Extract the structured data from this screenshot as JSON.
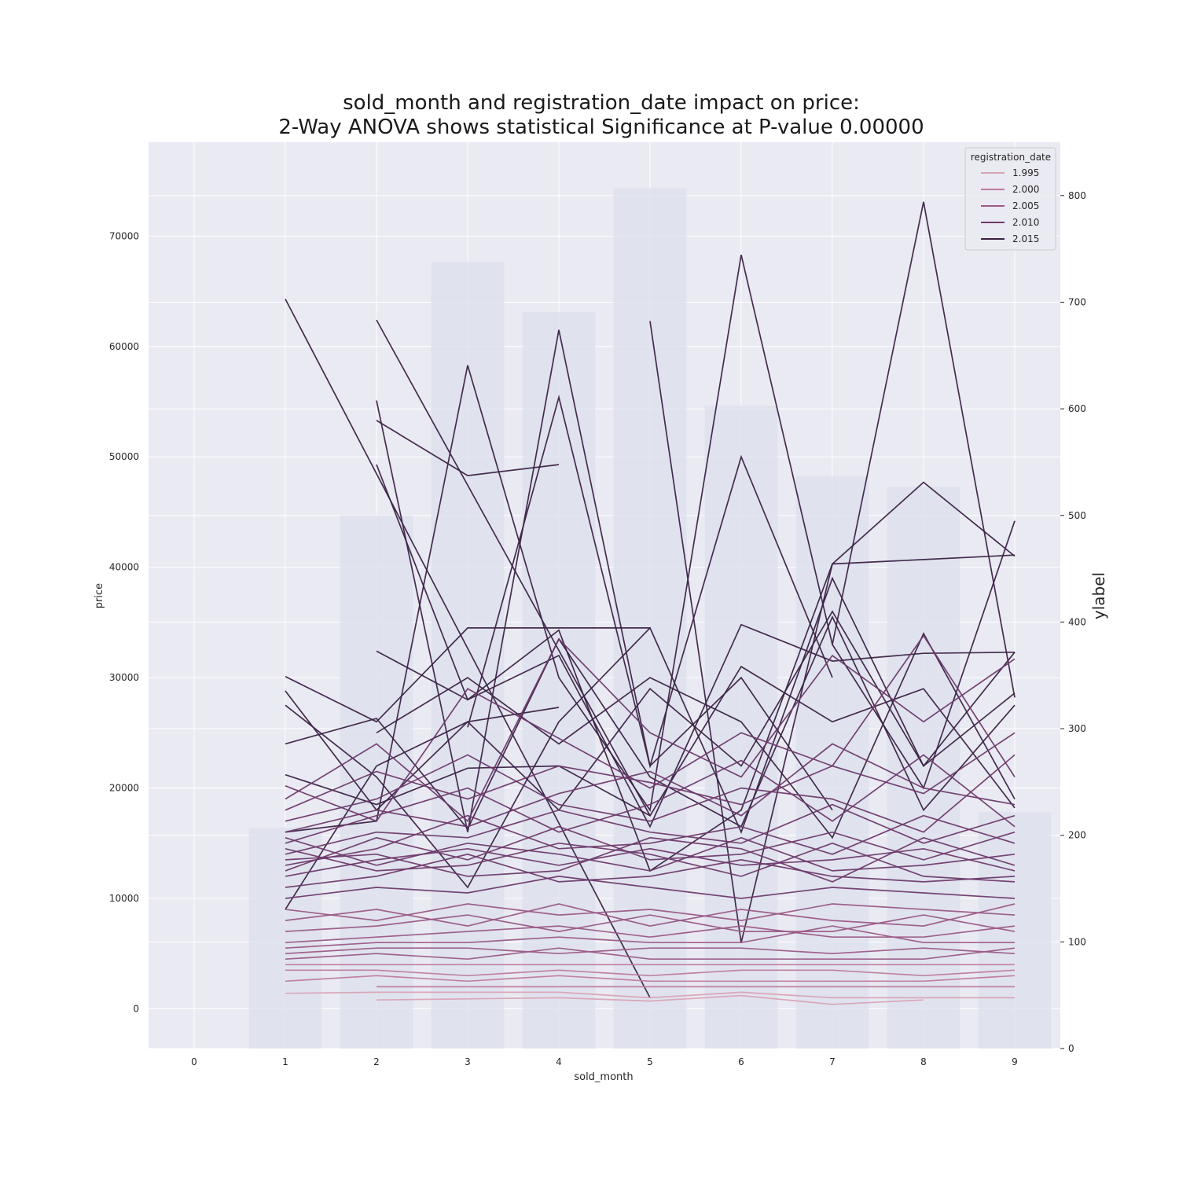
{
  "chart_data": {
    "type": "line",
    "title": "sold_month and registration_date impact on price:",
    "subtitle": "2-Way ANOVA shows statistical Significance at P-value 0.00000",
    "xlabel": "sold_month",
    "ylabel": "price",
    "ylabel_right": "ylabel",
    "x_ticks": [
      0,
      1,
      2,
      3,
      4,
      5,
      6,
      7,
      8,
      9
    ],
    "y_ticks": [
      0,
      10000,
      20000,
      30000,
      40000,
      50000,
      60000,
      70000
    ],
    "y_right_ticks": [
      0,
      100,
      200,
      300,
      400,
      500,
      600,
      700,
      800
    ],
    "xlim": [
      -0.5,
      9.5
    ],
    "ylim": [
      -3600,
      78500
    ],
    "ylim_right": [
      0,
      850
    ],
    "grid": true,
    "legend": {
      "title": "registration_date",
      "placement": "top-right",
      "entries": [
        {
          "label": "1.995",
          "color": "#d9a3b5"
        },
        {
          "label": "2.000",
          "color": "#c07a9c"
        },
        {
          "label": "2.005",
          "color": "#9b5a86"
        },
        {
          "label": "2.010",
          "color": "#6e3a6b"
        },
        {
          "label": "2.015",
          "color": "#3b2244"
        }
      ]
    },
    "bars": {
      "axis": "right",
      "categories": [
        1,
        2,
        3,
        4,
        5,
        6,
        7,
        8,
        9
      ],
      "values": [
        207,
        500,
        738,
        691,
        807,
        603,
        537,
        527,
        222
      ]
    },
    "series": [
      {
        "color": "#3b2244",
        "x": [
          1,
          5
        ],
        "y": [
          64300,
          1000
        ]
      },
      {
        "color": "#3b2244",
        "x": [
          2,
          5
        ],
        "y": [
          62400,
          17500
        ]
      },
      {
        "color": "#3b2244",
        "x": [
          1,
          2,
          3,
          4,
          5,
          6,
          7,
          8,
          9
        ],
        "y": [
          16000,
          17000,
          58300,
          30000,
          18000,
          68300,
          33000,
          73100,
          28200
        ]
      },
      {
        "color": "#3b2244",
        "x": [
          2,
          3,
          4,
          5,
          6,
          7
        ],
        "y": [
          55100,
          16000,
          61500,
          22000,
          30000,
          18000
        ]
      },
      {
        "color": "#3b2244",
        "x": [
          2,
          3,
          4
        ],
        "y": [
          53300,
          48300,
          49300
        ]
      },
      {
        "color": "#3b2244",
        "x": [
          3,
          4,
          5,
          6,
          7
        ],
        "y": [
          25500,
          55400,
          22000,
          50000,
          30000
        ]
      },
      {
        "color": "#3b2244",
        "x": [
          5,
          6,
          7,
          8,
          9
        ],
        "y": [
          62300,
          6000,
          40300,
          47700,
          41000
        ]
      },
      {
        "color": "#3b2244",
        "x": [
          2,
          3,
          4,
          5,
          6,
          7,
          8,
          9
        ],
        "y": [
          49300,
          28000,
          34300,
          12500,
          18000,
          40300,
          40700,
          41100
        ]
      },
      {
        "color": "#3b2244",
        "x": [
          7,
          8,
          9
        ],
        "y": [
          33000,
          20000,
          44200
        ]
      },
      {
        "color": "#3b2244",
        "x": [
          1,
          2,
          3,
          4,
          5
        ],
        "y": [
          30100,
          26000,
          34500,
          34500,
          34500
        ]
      },
      {
        "color": "#3b2244",
        "x": [
          1,
          2,
          3,
          4
        ],
        "y": [
          28800,
          18000,
          26000,
          27300
        ]
      },
      {
        "color": "#3b2244",
        "x": [
          1,
          2,
          3,
          4,
          5,
          6,
          7,
          8,
          9
        ],
        "y": [
          27500,
          21000,
          11000,
          26000,
          34500,
          16000,
          39000,
          22000,
          32300
        ]
      },
      {
        "color": "#3b2244",
        "x": [
          2,
          3,
          4,
          5,
          6,
          7,
          8,
          9
        ],
        "y": [
          32400,
          28000,
          32000,
          16500,
          34800,
          31500,
          32200,
          32300
        ]
      },
      {
        "color": "#3b2244",
        "x": [
          1,
          2,
          3,
          4,
          5,
          6,
          7,
          8,
          9
        ],
        "y": [
          24000,
          26300,
          16300,
          33500,
          21000,
          16500,
          35500,
          18000,
          27500
        ]
      },
      {
        "color": "#3b2244",
        "x": [
          2,
          3,
          4,
          5,
          6,
          7,
          8,
          9
        ],
        "y": [
          25000,
          30000,
          24000,
          30000,
          26000,
          15500,
          34000,
          19000
        ]
      },
      {
        "color": "#3b2244",
        "x": [
          1,
          2,
          3,
          4,
          5,
          6,
          7,
          8,
          9
        ],
        "y": [
          21200,
          18500,
          21800,
          22000,
          17500,
          31000,
          26000,
          29000,
          18200
        ]
      },
      {
        "color": "#3b2244",
        "x": [
          1,
          2,
          3,
          4,
          5,
          6,
          7,
          8,
          9
        ],
        "y": [
          9000,
          22000,
          26000,
          18000,
          29000,
          22000,
          36000,
          22000,
          28600
        ]
      },
      {
        "color": "#6e3a6b",
        "x": [
          1,
          2,
          3,
          4,
          5,
          6,
          7,
          8,
          9
        ],
        "y": [
          20200,
          17000,
          29000,
          24500,
          20000,
          25000,
          22000,
          33800,
          21000
        ]
      },
      {
        "color": "#6e3a6b",
        "x": [
          1,
          2,
          3,
          4,
          5,
          6,
          7,
          8,
          9
        ],
        "y": [
          19000,
          24000,
          17000,
          33500,
          25000,
          21000,
          32000,
          26000,
          31700
        ]
      },
      {
        "color": "#6e3a6b",
        "x": [
          1,
          2,
          3,
          4,
          5,
          6,
          7,
          8,
          9
        ],
        "y": [
          18000,
          21500,
          19000,
          22000,
          20500,
          18500,
          22000,
          19500,
          25000
        ]
      },
      {
        "color": "#6e3a6b",
        "x": [
          1,
          2,
          3,
          4,
          5,
          6,
          7,
          8,
          9
        ],
        "y": [
          17000,
          19000,
          23000,
          18500,
          17000,
          20000,
          19000,
          16000,
          23000
        ]
      },
      {
        "color": "#6e3a6b",
        "x": [
          1,
          2,
          3,
          4,
          5,
          6,
          7,
          8,
          9
        ],
        "y": [
          16000,
          18000,
          16500,
          19500,
          21500,
          17500,
          24000,
          20000,
          18500
        ]
      },
      {
        "color": "#6e3a6b",
        "x": [
          1,
          2,
          3,
          4,
          5,
          6,
          7,
          8,
          9
        ],
        "y": [
          15000,
          17500,
          20000,
          16000,
          18500,
          22500,
          17000,
          23000,
          16500
        ]
      },
      {
        "color": "#6e3a6b",
        "x": [
          1,
          2,
          3,
          4,
          5,
          6,
          7,
          8,
          9
        ],
        "y": [
          14000,
          16000,
          15500,
          18000,
          16000,
          15000,
          18500,
          15000,
          17500
        ]
      },
      {
        "color": "#6e3a6b",
        "x": [
          1,
          2,
          3,
          4,
          5,
          6,
          7,
          8,
          9
        ],
        "y": [
          13000,
          14500,
          17500,
          14500,
          15000,
          16500,
          14000,
          17500,
          15000
        ]
      },
      {
        "color": "#6e3a6b",
        "x": [
          1,
          2,
          3,
          4,
          5,
          6,
          7,
          8,
          9
        ],
        "y": [
          12500,
          15500,
          13500,
          16500,
          13500,
          14000,
          16000,
          13500,
          16000
        ]
      },
      {
        "color": "#6e3a6b",
        "x": [
          1,
          2,
          3,
          4,
          5,
          6,
          7,
          8,
          9
        ],
        "y": [
          12000,
          13500,
          14500,
          13000,
          14500,
          13000,
          13500,
          14500,
          12500
        ]
      },
      {
        "color": "#6e3a6b",
        "x": [
          1,
          2,
          3,
          4,
          5,
          6,
          7,
          8,
          9
        ],
        "y": [
          15500,
          13000,
          15000,
          14000,
          12500,
          15500,
          12500,
          13000,
          14000
        ]
      },
      {
        "color": "#6e3a6b",
        "x": [
          1,
          2,
          3,
          4,
          5,
          6,
          7,
          8,
          9
        ],
        "y": [
          14500,
          12500,
          13000,
          15000,
          14000,
          12000,
          15000,
          12000,
          11500
        ]
      },
      {
        "color": "#6e3a6b",
        "x": [
          1,
          2,
          3,
          4,
          5,
          6,
          7,
          8,
          9
        ],
        "y": [
          13500,
          14000,
          12000,
          12500,
          15500,
          14500,
          11500,
          15500,
          13000
        ]
      },
      {
        "color": "#6e3a6b",
        "x": [
          1,
          2,
          3,
          4,
          5,
          6,
          7,
          8,
          9
        ],
        "y": [
          11000,
          12000,
          14000,
          11500,
          12000,
          13500,
          12000,
          11500,
          12000
        ]
      },
      {
        "color": "#6e3a6b",
        "x": [
          1,
          2,
          3,
          4,
          5,
          6,
          7,
          8,
          9
        ],
        "y": [
          10000,
          11000,
          10500,
          12000,
          11000,
          10000,
          11000,
          10500,
          10000
        ]
      },
      {
        "color": "#9b5a86",
        "x": [
          1,
          2,
          3,
          4,
          5,
          6,
          7,
          8,
          9
        ],
        "y": [
          9000,
          8000,
          9500,
          8500,
          9000,
          8000,
          9500,
          9000,
          8500
        ]
      },
      {
        "color": "#9b5a86",
        "x": [
          1,
          2,
          3,
          4,
          5,
          6,
          7,
          8,
          9
        ],
        "y": [
          8000,
          9000,
          7500,
          9500,
          7500,
          9000,
          8000,
          7500,
          9500
        ]
      },
      {
        "color": "#9b5a86",
        "x": [
          1,
          2,
          3,
          4,
          5,
          6,
          7,
          8,
          9
        ],
        "y": [
          7000,
          7500,
          8500,
          7000,
          8500,
          7000,
          7000,
          8500,
          7000
        ]
      },
      {
        "color": "#9b5a86",
        "x": [
          1,
          2,
          3,
          4,
          5,
          6,
          7,
          8,
          9
        ],
        "y": [
          6000,
          6500,
          7000,
          7500,
          6500,
          7500,
          6500,
          6500,
          7500
        ]
      },
      {
        "color": "#9b5a86",
        "x": [
          1,
          2,
          3,
          4,
          5,
          6,
          7,
          8,
          9
        ],
        "y": [
          5500,
          6000,
          6000,
          6500,
          6000,
          6000,
          7500,
          6000,
          6000
        ]
      },
      {
        "color": "#9b5a86",
        "x": [
          1,
          2,
          3,
          4,
          5,
          6,
          7,
          8,
          9
        ],
        "y": [
          5000,
          5500,
          5500,
          5000,
          5500,
          5500,
          5000,
          5500,
          5000
        ]
      },
      {
        "color": "#9b5a86",
        "x": [
          1,
          2,
          3,
          4,
          5,
          6,
          7,
          8,
          9
        ],
        "y": [
          4500,
          5000,
          4500,
          5500,
          4500,
          4500,
          4500,
          4500,
          5500
        ]
      },
      {
        "color": "#c07a9c",
        "x": [
          1,
          2,
          3,
          4,
          5,
          6,
          7,
          8,
          9
        ],
        "y": [
          4000,
          4000,
          4000,
          4000,
          4000,
          4000,
          4000,
          4000,
          4000
        ]
      },
      {
        "color": "#c07a9c",
        "x": [
          1,
          2,
          3,
          4,
          5,
          6,
          7,
          8,
          9
        ],
        "y": [
          3500,
          3500,
          3000,
          3500,
          3000,
          3500,
          3500,
          3000,
          3500
        ]
      },
      {
        "color": "#c07a9c",
        "x": [
          1,
          2,
          3,
          4,
          5,
          6,
          7,
          8,
          9
        ],
        "y": [
          2500,
          3000,
          2500,
          3000,
          2500,
          2500,
          2500,
          2500,
          3000
        ]
      },
      {
        "color": "#c07a9c",
        "x": [
          2,
          3,
          4,
          5,
          6,
          7,
          8,
          9
        ],
        "y": [
          2000,
          2000,
          2000,
          2000,
          2000,
          2000,
          2000,
          2000
        ]
      },
      {
        "color": "#d9a3b5",
        "x": [
          1,
          2,
          3,
          4,
          5,
          6,
          7,
          8,
          9
        ],
        "y": [
          1400,
          1500,
          1500,
          1500,
          1000,
          1500,
          1000,
          1000,
          1000
        ]
      },
      {
        "color": "#d9a3b5",
        "x": [
          2,
          3,
          4,
          5,
          6,
          7,
          8
        ],
        "y": [
          800,
          900,
          1000,
          700,
          1200,
          400,
          800
        ]
      }
    ]
  }
}
